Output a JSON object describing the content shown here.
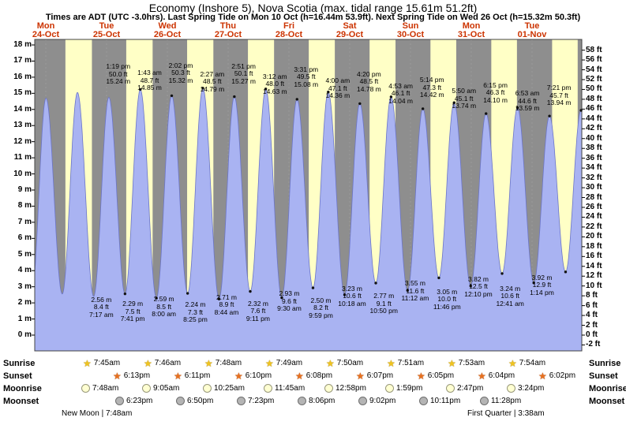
{
  "title": "Economy (Inshore 5), Nova Scotia (max. tidal range 15.61m 51.2ft)",
  "subtitle": "Times are ADT (UTC -3.0hrs). Last Spring Tide on Mon 10 Oct (h=16.44m 53.9ft). Next Spring Tide on Wed 26 Oct (h=15.32m 50.3ft)",
  "chart_data": {
    "type": "area",
    "title": "Economy (Inshore 5), Nova Scotia tide curve",
    "xlabel": "date",
    "ylabel_left": "height (m)",
    "ylabel_right": "height (ft)",
    "y_left": {
      "min": 0,
      "max": 18,
      "step": 1,
      "unit": "m"
    },
    "y_right": {
      "min": -2,
      "max": 58,
      "step": 2,
      "unit": "ft"
    },
    "days": [
      {
        "dow": "Mon",
        "date": "24-Oct"
      },
      {
        "dow": "Tue",
        "date": "25-Oct"
      },
      {
        "dow": "Wed",
        "date": "26-Oct"
      },
      {
        "dow": "Thu",
        "date": "27-Oct"
      },
      {
        "dow": "Fri",
        "date": "28-Oct"
      },
      {
        "dow": "Sat",
        "date": "29-Oct"
      },
      {
        "dow": "Sun",
        "date": "30-Oct"
      },
      {
        "dow": "Mon",
        "date": "31-Oct"
      },
      {
        "dow": "Tue",
        "date": "01-Nov"
      }
    ],
    "highs": [
      {
        "time": "1:19 pm",
        "ft": "50.0 ft",
        "m": "15.24 m",
        "t": 37.32,
        "h": 15.24
      },
      {
        "time": "1:43 am",
        "ft": "48.7 ft",
        "m": "14.85 m",
        "t": 49.72,
        "h": 14.85
      },
      {
        "time": "2:02 pm",
        "ft": "50.3 ft",
        "m": "15.32 m",
        "t": 62.03,
        "h": 15.32
      },
      {
        "time": "2:27 am",
        "ft": "48.5 ft",
        "m": "14.79 m",
        "t": 74.45,
        "h": 14.79
      },
      {
        "time": "2:51 pm",
        "ft": "50.1 ft",
        "m": "15.27 m",
        "t": 86.85,
        "h": 15.27
      },
      {
        "time": "3:12 am",
        "ft": "48.0 ft",
        "m": "14.63 m",
        "t": 99.2,
        "h": 14.63
      },
      {
        "time": "3:31 pm",
        "ft": "49.5 ft",
        "m": "15.08 m",
        "t": 111.52,
        "h": 15.08
      },
      {
        "time": "4:00 am",
        "ft": "47.1 ft",
        "m": "14.36 m",
        "t": 124.0,
        "h": 14.36
      },
      {
        "time": "4:20 pm",
        "ft": "48.5 ft",
        "m": "14.78 m",
        "t": 136.33,
        "h": 14.78
      },
      {
        "time": "4:53 am",
        "ft": "46.1 ft",
        "m": "14.04 m",
        "t": 148.88,
        "h": 14.04
      },
      {
        "time": "5:14 pm",
        "ft": "47.3 ft",
        "m": "14.42 m",
        "t": 161.23,
        "h": 14.42
      },
      {
        "time": "5:50 am",
        "ft": "45.1 ft",
        "m": "13.74 m",
        "t": 173.83,
        "h": 13.74
      },
      {
        "time": "6:15 pm",
        "ft": "46.3 ft",
        "m": "14.10 m",
        "t": 186.25,
        "h": 14.1
      },
      {
        "time": "6:53 am",
        "ft": "44.6 ft",
        "m": "13.59 m",
        "t": 198.88,
        "h": 13.59
      },
      {
        "time": "7:21 pm",
        "ft": "45.7 ft",
        "m": "13.94 m",
        "t": 211.35,
        "h": 13.94
      }
    ],
    "lows": [
      {
        "m": "2.56 m",
        "ft": "8.4 ft",
        "time": "7:17 am",
        "t": 31.28,
        "h": 2.56
      },
      {
        "m": "2.29 m",
        "ft": "7.5 ft",
        "time": "7:41 pm",
        "t": 43.68,
        "h": 2.29
      },
      {
        "m": "2.59 m",
        "ft": "8.5 ft",
        "time": "8:00 am",
        "t": 56.0,
        "h": 2.59
      },
      {
        "m": "2.24 m",
        "ft": "7.3 ft",
        "time": "8:25 pm",
        "t": 68.42,
        "h": 2.24
      },
      {
        "m": "2.71 m",
        "ft": "8.9 ft",
        "time": "8:44 am",
        "t": 80.73,
        "h": 2.71
      },
      {
        "m": "2.32 m",
        "ft": "7.6 ft",
        "time": "9:11 pm",
        "t": 93.18,
        "h": 2.32
      },
      {
        "m": "2.93 m",
        "ft": "9.6 ft",
        "time": "9:30 am",
        "t": 105.5,
        "h": 2.93
      },
      {
        "m": "2.50 m",
        "ft": "8.2 ft",
        "time": "9:59 pm",
        "t": 117.98,
        "h": 2.5
      },
      {
        "m": "3.23 m",
        "ft": "10.6 ft",
        "time": "10:18 am",
        "t": 130.3,
        "h": 3.23
      },
      {
        "m": "2.77 m",
        "ft": "9.1 ft",
        "time": "10:50 pm",
        "t": 142.83,
        "h": 2.77
      },
      {
        "m": "3.55 m",
        "ft": "11.6 ft",
        "time": "11:12 am",
        "t": 155.2,
        "h": 3.55
      },
      {
        "m": "3.05 m",
        "ft": "10.0 ft",
        "time": "11:46 pm",
        "t": 167.77,
        "h": 3.05
      },
      {
        "m": "3.82 m",
        "ft": "12.5 ft",
        "time": "12:10 pm",
        "t": 180.17,
        "h": 3.82
      },
      {
        "m": "3.24 m",
        "ft": "10.6 ft",
        "time": "12:41 am",
        "t": 192.68,
        "h": 3.24
      },
      {
        "m": "3.92 m",
        "ft": "12.9 ft",
        "time": "1:14 pm",
        "t": 205.23,
        "h": 3.92
      }
    ],
    "unlabeled_extremes": [
      {
        "t": -5.6,
        "h": 2.5
      },
      {
        "t": 0.1,
        "h": 14.7
      },
      {
        "t": 6.5,
        "h": 2.55
      },
      {
        "t": 12.5,
        "h": 15.05
      },
      {
        "t": 18.9,
        "h": 2.4
      },
      {
        "t": 24.9,
        "h": 14.75
      },
      {
        "t": 217.6,
        "h": 3.4
      }
    ],
    "colors": {
      "day_band": "#ffffc6",
      "night_band": "#8e8e8e",
      "tide_fill": "#a9b3f2",
      "tide_edge": "#6b75c9",
      "date_label": "#cc3300"
    }
  },
  "astro": {
    "rows": [
      {
        "label": "Sunrise",
        "icon": "sunrise-star-icon",
        "entries": [
          "7:45am",
          "7:46am",
          "7:48am",
          "7:49am",
          "7:50am",
          "7:51am",
          "7:53am",
          "7:54am"
        ]
      },
      {
        "label": "Sunset",
        "icon": "sunset-star-icon",
        "entries": [
          "6:13pm",
          "6:11pm",
          "6:10pm",
          "6:08pm",
          "6:07pm",
          "6:05pm",
          "6:04pm",
          "6:02pm"
        ]
      },
      {
        "label": "Moonrise",
        "icon": "moonrise-circle-icon",
        "entries": [
          "7:48am",
          "9:05am",
          "10:25am",
          "11:45am",
          "12:58pm",
          "1:59pm",
          "2:47pm",
          "3:24pm"
        ]
      },
      {
        "label": "Moonset",
        "icon": "moonset-circle-icon",
        "entries": [
          "6:23pm",
          "6:50pm",
          "7:23pm",
          "8:06pm",
          "9:02pm",
          "10:11pm",
          "11:28pm"
        ]
      }
    ],
    "phases": [
      {
        "text": "New Moon | 7:48am"
      },
      {
        "text": "First Quarter | 3:38am"
      }
    ]
  }
}
